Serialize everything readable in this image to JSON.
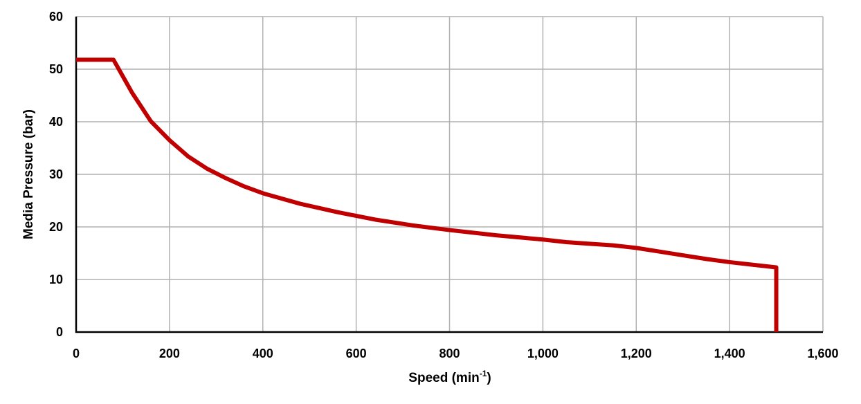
{
  "chart_data": {
    "type": "line",
    "title": "",
    "xlabel_main": "Speed (min",
    "xlabel_sup": "-1",
    "xlabel_close": ")",
    "ylabel": "Media Pressure (bar)",
    "xlim": [
      0,
      1600
    ],
    "ylim": [
      0,
      60
    ],
    "x_ticks": [
      0,
      200,
      400,
      600,
      800,
      1000,
      1200,
      1400,
      1600
    ],
    "x_tick_labels": [
      "0",
      "200",
      "400",
      "600",
      "800",
      "1,000",
      "1,200",
      "1,400",
      "1,600"
    ],
    "y_ticks": [
      0,
      10,
      20,
      30,
      40,
      50,
      60
    ],
    "y_tick_labels": [
      "0",
      "10",
      "20",
      "30",
      "40",
      "50",
      "60"
    ],
    "grid": true,
    "legend": "none",
    "series": [
      {
        "color": "#c00000",
        "x": [
          0,
          80,
          120,
          160,
          200,
          240,
          280,
          320,
          360,
          400,
          480,
          560,
          640,
          720,
          800,
          900,
          1000,
          1050,
          1100,
          1150,
          1200,
          1250,
          1300,
          1350,
          1400,
          1450,
          1500,
          1500
        ],
        "y": [
          51.8,
          51.8,
          45.5,
          40.1,
          36.5,
          33.4,
          31.1,
          29.3,
          27.7,
          26.4,
          24.4,
          22.8,
          21.4,
          20.3,
          19.4,
          18.4,
          17.6,
          17.1,
          16.8,
          16.5,
          16.0,
          15.3,
          14.6,
          13.9,
          13.3,
          12.8,
          12.3,
          0
        ]
      }
    ]
  },
  "colors": {
    "grid": "#b0b0b0",
    "axis": "#000000",
    "line": "#c00000"
  }
}
